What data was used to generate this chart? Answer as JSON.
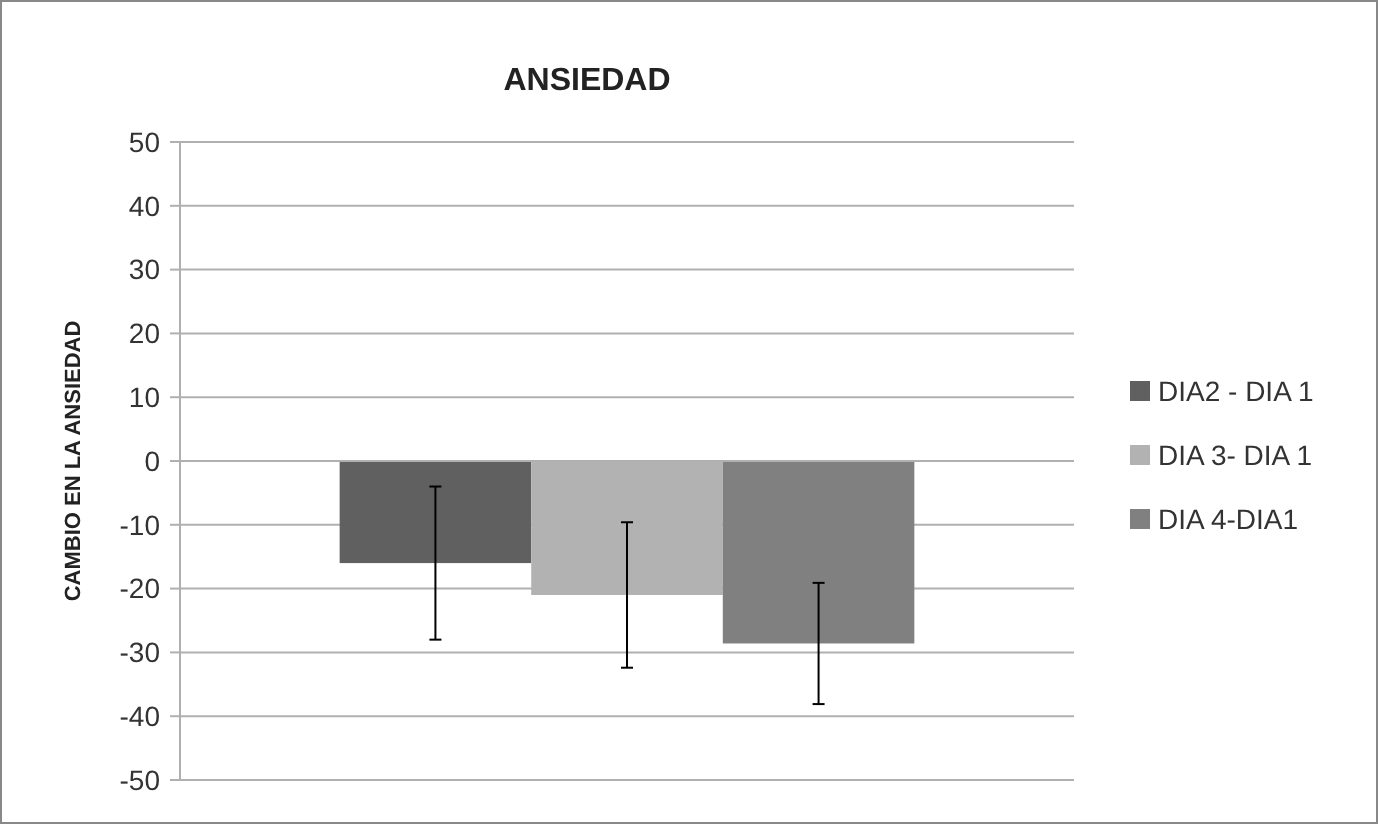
{
  "chart_data": {
    "type": "bar",
    "title": "ANSIEDAD",
    "ylabel": "CAMBIO EN LA ANSIEDAD",
    "categories": [
      null
    ],
    "series": [
      {
        "name": "DIA2 - DIA 1",
        "color": "#606060",
        "values": [
          -16
        ],
        "errors": [
          12
        ]
      },
      {
        "name": "DIA 3- DIA 1",
        "color": "#b2b2b2",
        "values": [
          -21
        ],
        "errors": [
          11.4
        ]
      },
      {
        "name": "DIA 4-DIA1",
        "color": "#808080",
        "values": [
          -28.6
        ],
        "errors": [
          9.5
        ]
      }
    ],
    "ylim": [
      -50,
      50
    ],
    "yticks": [
      -50,
      -40,
      -30,
      -20,
      -10,
      0,
      10,
      20,
      30,
      40,
      50
    ],
    "grid": "y",
    "legend": "right"
  }
}
